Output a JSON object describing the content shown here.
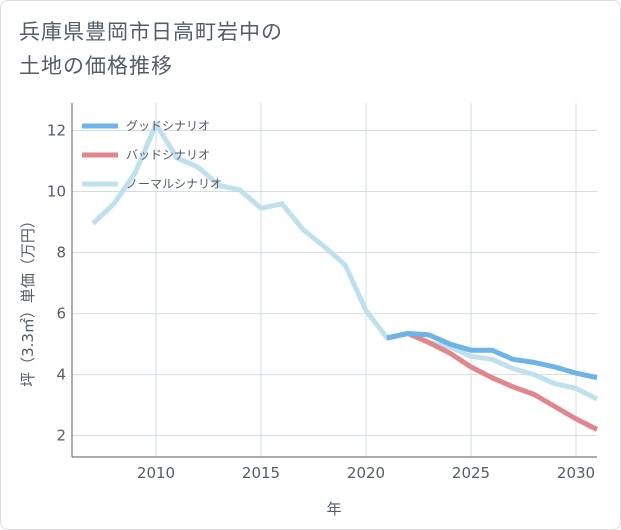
{
  "title_lines": [
    "兵庫県豊岡市日高町岩中の",
    "土地の価格推移"
  ],
  "chart_data": {
    "type": "line",
    "xlabel": "年",
    "ylabel": "坪（3.3㎡）単価（万円）",
    "xlim": [
      2006,
      2031
    ],
    "ylim": [
      1.3,
      12.9
    ],
    "xticks": [
      2010,
      2015,
      2020,
      2025,
      2030
    ],
    "yticks": [
      2,
      4,
      6,
      8,
      10,
      12
    ],
    "grid": true,
    "legend_position": "top-left",
    "series": [
      {
        "name": "グッドシナリオ",
        "color": "#6cb4ea",
        "x": [
          2021,
          2022,
          2023,
          2024,
          2025,
          2026,
          2027,
          2028,
          2029,
          2030,
          2031
        ],
        "y": [
          5.2,
          5.35,
          5.3,
          5.0,
          4.8,
          4.8,
          4.5,
          4.4,
          4.25,
          4.05,
          3.9
        ]
      },
      {
        "name": "バッドシナリオ",
        "color": "#e0868c",
        "x": [
          2021,
          2022,
          2023,
          2024,
          2025,
          2026,
          2027,
          2028,
          2029,
          2030,
          2031
        ],
        "y": [
          5.2,
          5.35,
          5.05,
          4.7,
          4.25,
          3.9,
          3.6,
          3.35,
          2.95,
          2.55,
          2.2
        ]
      },
      {
        "name": "ノーマルシナリオ",
        "color": "#c0e0ee",
        "x": [
          2007,
          2008,
          2009,
          2010,
          2011,
          2012,
          2013,
          2014,
          2015,
          2016,
          2017,
          2018,
          2019,
          2020,
          2021,
          2022,
          2023,
          2024,
          2025,
          2026,
          2027,
          2028,
          2029,
          2030,
          2031
        ],
        "y": [
          8.95,
          9.6,
          10.6,
          12.2,
          11.1,
          10.8,
          10.2,
          10.05,
          9.45,
          9.6,
          8.75,
          8.2,
          7.6,
          6.1,
          5.2,
          5.35,
          5.05,
          4.9,
          4.6,
          4.5,
          4.2,
          4.0,
          3.7,
          3.55,
          3.2
        ]
      }
    ]
  }
}
